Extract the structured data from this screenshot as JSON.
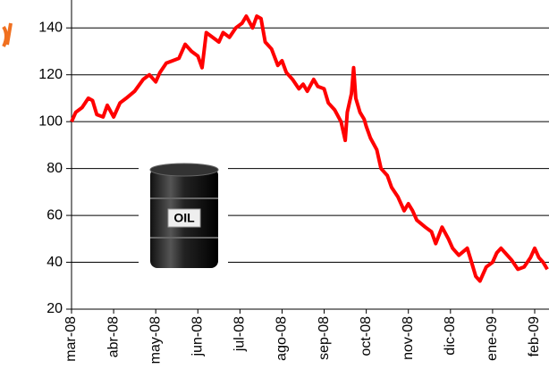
{
  "chart_data": {
    "type": "line",
    "annotation": "OIL",
    "xlim": [
      0,
      11.34
    ],
    "xticks": [
      {
        "value": 0,
        "label": "mar-08"
      },
      {
        "value": 1,
        "label": "abr-08"
      },
      {
        "value": 2,
        "label": "may-08"
      },
      {
        "value": 3,
        "label": "jun-08"
      },
      {
        "value": 4,
        "label": "jul-08"
      },
      {
        "value": 5,
        "label": "ago-08"
      },
      {
        "value": 6,
        "label": "sep-08"
      },
      {
        "value": 7,
        "label": "oct-08"
      },
      {
        "value": 8,
        "label": "nov-08"
      },
      {
        "value": 9,
        "label": "dic-08"
      },
      {
        "value": 10,
        "label": "ene-09"
      },
      {
        "value": 11,
        "label": "feb-09"
      }
    ],
    "ylim": [
      20,
      150
    ],
    "yticks": [
      20,
      40,
      60,
      80,
      100,
      120,
      140
    ],
    "grid": true,
    "series": [
      {
        "color": "#ff0000",
        "x": [
          0,
          0.1,
          0.25,
          0.4,
          0.5,
          0.6,
          0.75,
          0.85,
          1.0,
          1.15,
          1.3,
          1.5,
          1.7,
          1.85,
          2.0,
          2.1,
          2.25,
          2.4,
          2.55,
          2.7,
          2.85,
          3.0,
          3.1,
          3.2,
          3.35,
          3.5,
          3.6,
          3.75,
          3.9,
          4.05,
          4.15,
          4.3,
          4.4,
          4.5,
          4.6,
          4.75,
          4.9,
          5.0,
          5.1,
          5.25,
          5.4,
          5.5,
          5.6,
          5.75,
          5.85,
          6.0,
          6.1,
          6.25,
          6.4,
          6.5,
          6.55,
          6.65,
          6.7,
          6.75,
          6.85,
          6.95,
          7.0,
          7.1,
          7.25,
          7.35,
          7.5,
          7.6,
          7.75,
          7.9,
          8.0,
          8.1,
          8.2,
          8.4,
          8.55,
          8.65,
          8.8,
          8.95,
          9.05,
          9.2,
          9.4,
          9.5,
          9.6,
          9.7,
          9.85,
          10.0,
          10.1,
          10.2,
          10.3,
          10.45,
          10.6,
          10.75,
          10.9,
          11.0,
          11.1,
          11.2,
          11.3
        ],
        "values": [
          100,
          104,
          106,
          110,
          109,
          103,
          102,
          107,
          102,
          108,
          110,
          113,
          118,
          120,
          117,
          121,
          125,
          126,
          127,
          133,
          130,
          128,
          123,
          138,
          136,
          134,
          138,
          136,
          140,
          142,
          145,
          140,
          145,
          144,
          134,
          131,
          124,
          126,
          121,
          118,
          114,
          116,
          113,
          118,
          115,
          114,
          108,
          105,
          100,
          92,
          104,
          112,
          123,
          110,
          104,
          101,
          98,
          93,
          88,
          80,
          77,
          72,
          68,
          62,
          65,
          62,
          58,
          55,
          53,
          48,
          55,
          50,
          46,
          43,
          46,
          40,
          34,
          32,
          38,
          40,
          44,
          46,
          44,
          41,
          37,
          38,
          42,
          46,
          42,
          40,
          37
        ]
      }
    ]
  }
}
